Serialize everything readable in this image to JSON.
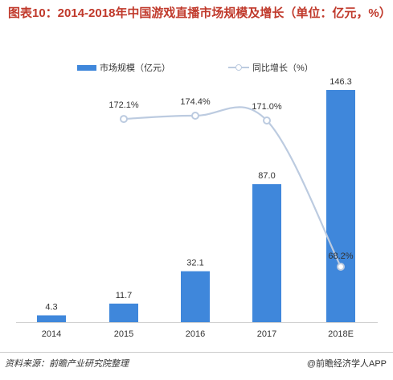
{
  "title": "图表10：2014-2018年中国游戏直播市场规模及增长（单位：亿元，%）",
  "legend": {
    "bar_label": "市场规模（亿元）",
    "line_label": "同比增长（%）"
  },
  "source": "资料来源：前瞻产业研究院整理",
  "brand": "@前瞻经济学人APP",
  "colors": {
    "title": "#c0392b",
    "bar": "#3f87db",
    "line": "#bccbe0"
  },
  "chart_data": {
    "type": "bar",
    "categories": [
      "2014",
      "2015",
      "2016",
      "2017",
      "2018E"
    ],
    "series": [
      {
        "name": "市场规模（亿元）",
        "type": "bar",
        "values": [
          4.3,
          11.7,
          32.1,
          87.0,
          146.3
        ],
        "labels": [
          "4.3",
          "11.7",
          "32.1",
          "87.0",
          "146.3"
        ]
      },
      {
        "name": "同比增长（%）",
        "type": "line",
        "values": [
          null,
          172.1,
          174.4,
          171.0,
          68.2
        ],
        "labels": [
          "",
          "172.1%",
          "174.4%",
          "171.0%",
          "68.2%"
        ]
      }
    ],
    "legend": "top-center",
    "grid": false
  }
}
